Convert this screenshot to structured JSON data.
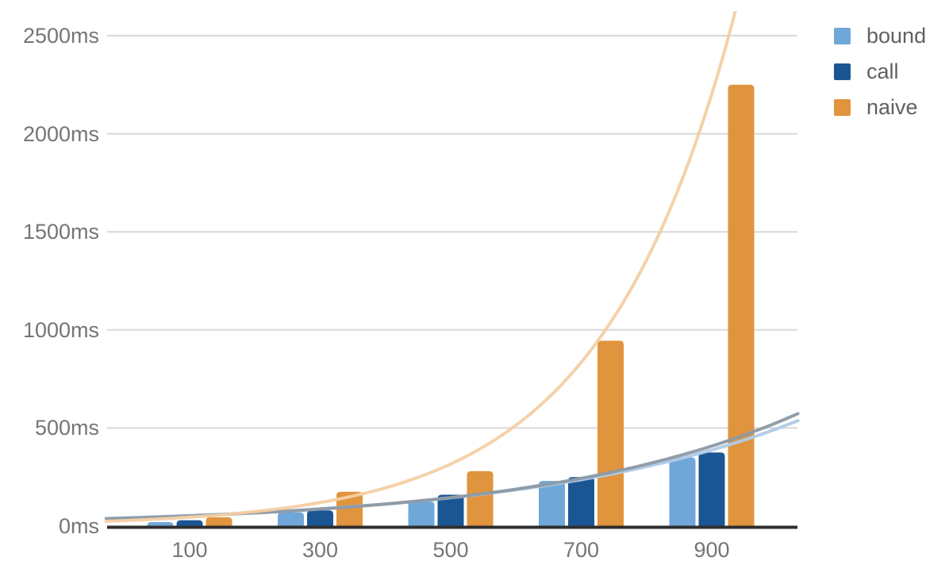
{
  "chart_data": {
    "type": "bar",
    "title": "",
    "xlabel": "",
    "ylabel": "",
    "categories": [
      "100",
      "300",
      "500",
      "700",
      "900"
    ],
    "x_values": [
      100,
      300,
      500,
      700,
      900
    ],
    "series": [
      {
        "name": "bound",
        "color": "#6fa7d8",
        "values": [
          20,
          70,
          125,
          230,
          350
        ]
      },
      {
        "name": "call",
        "color": "#1b5694",
        "values": [
          30,
          80,
          160,
          250,
          375
        ]
      },
      {
        "name": "naive",
        "color": "#e0943e",
        "values": [
          45,
          175,
          280,
          945,
          2250
        ]
      }
    ],
    "unit": "ms",
    "ylim": [
      0,
      2500
    ],
    "y_ticks": [
      {
        "value": 0,
        "label": "0ms"
      },
      {
        "value": 500,
        "label": "500ms"
      },
      {
        "value": 1000,
        "label": "1000ms"
      },
      {
        "value": 1500,
        "label": "1500ms"
      },
      {
        "value": 2000,
        "label": "2000ms"
      },
      {
        "value": 2500,
        "label": "2500ms"
      }
    ],
    "grid": true,
    "legend_position": "right",
    "trendlines": [
      {
        "series": "bound",
        "type": "exponential",
        "a": 42,
        "k": 0.00247,
        "color": "#aecbe9",
        "width": 4
      },
      {
        "series": "call",
        "type": "exponential",
        "a": 40,
        "k": 0.00258,
        "color": "#8c99a4",
        "width": 4
      },
      {
        "series": "naive",
        "type": "exponential",
        "a": 28,
        "k": 0.00485,
        "color": "#f4cfa4",
        "width": 4
      }
    ],
    "colors": {
      "grid": "#d8d8d8",
      "axis": "#2e2e2e",
      "tick_label": "#757575",
      "legend_label": "#616161",
      "background": "#ffffff"
    },
    "legend": [
      {
        "label": "bound"
      },
      {
        "label": "call"
      },
      {
        "label": "naive"
      }
    ]
  }
}
